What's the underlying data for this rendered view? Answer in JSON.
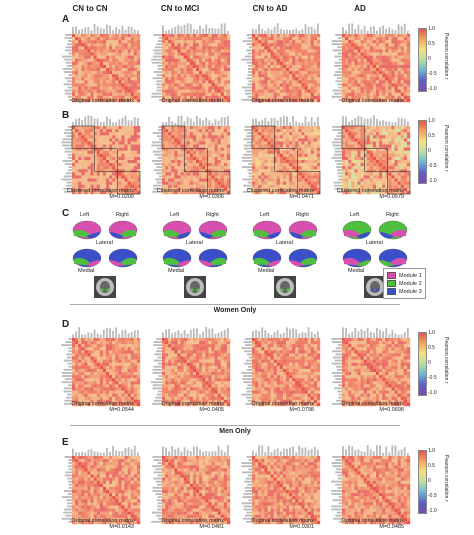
{
  "columns": [
    "CN to CN",
    "CN to MCI",
    "CN to AD",
    "AD"
  ],
  "panels": {
    "A": {
      "letter": "A",
      "captions": [
        "Original correlation matrix",
        "Original correlation matrix",
        "Original correlation matrix",
        "Original correlation matrix"
      ]
    },
    "B": {
      "letter": "B",
      "captions": [
        "Clustered correlation matrix",
        "Clustered correlation matrix",
        "Clustered correlation matrix",
        "Clustered correlation matrix"
      ],
      "modularity": [
        "M=0.0209",
        "M=0.0306",
        "M=0.0471",
        "M=0.0579"
      ]
    },
    "C": {
      "letter": "C",
      "left": "Left",
      "right": "Right",
      "lateral": "Lateral",
      "medial": "Medial"
    },
    "D": {
      "letter": "D",
      "title": "Women Only",
      "captions": [
        "Original correlation matrix",
        "Original correlation matrix",
        "Original correlation matrix",
        "Original correlation matrix"
      ],
      "modularity": [
        "M=0.0544",
        "M=0.0405",
        "M=0.0798",
        "M=0.0698"
      ]
    },
    "E": {
      "letter": "E",
      "title": "Men Only",
      "captions": [
        "Original correlation matrix",
        "Original correlation matrix",
        "Original correlation matrix",
        "Original correlation matrix"
      ],
      "modularity": [
        "M=0.0143",
        "M=0.0481",
        "M=0.0301",
        "M=0.0485"
      ]
    }
  },
  "colorbar": {
    "label": "Pearson correlation r",
    "ticks": [
      "1.0",
      "0.5",
      "0",
      "-0.5",
      "-1.0"
    ],
    "colors": [
      "#e8524a",
      "#f5a45a",
      "#f7e27a",
      "#b7dfa0",
      "#6fb4d6",
      "#5a5fc8",
      "#7a4bb0"
    ]
  },
  "legend": {
    "items": [
      {
        "label": "Module 1",
        "color": "#d94fb0"
      },
      {
        "label": "Module 2",
        "color": "#4fbf3f"
      },
      {
        "label": "Module 3",
        "color": "#3a4fc8"
      }
    ]
  }
}
